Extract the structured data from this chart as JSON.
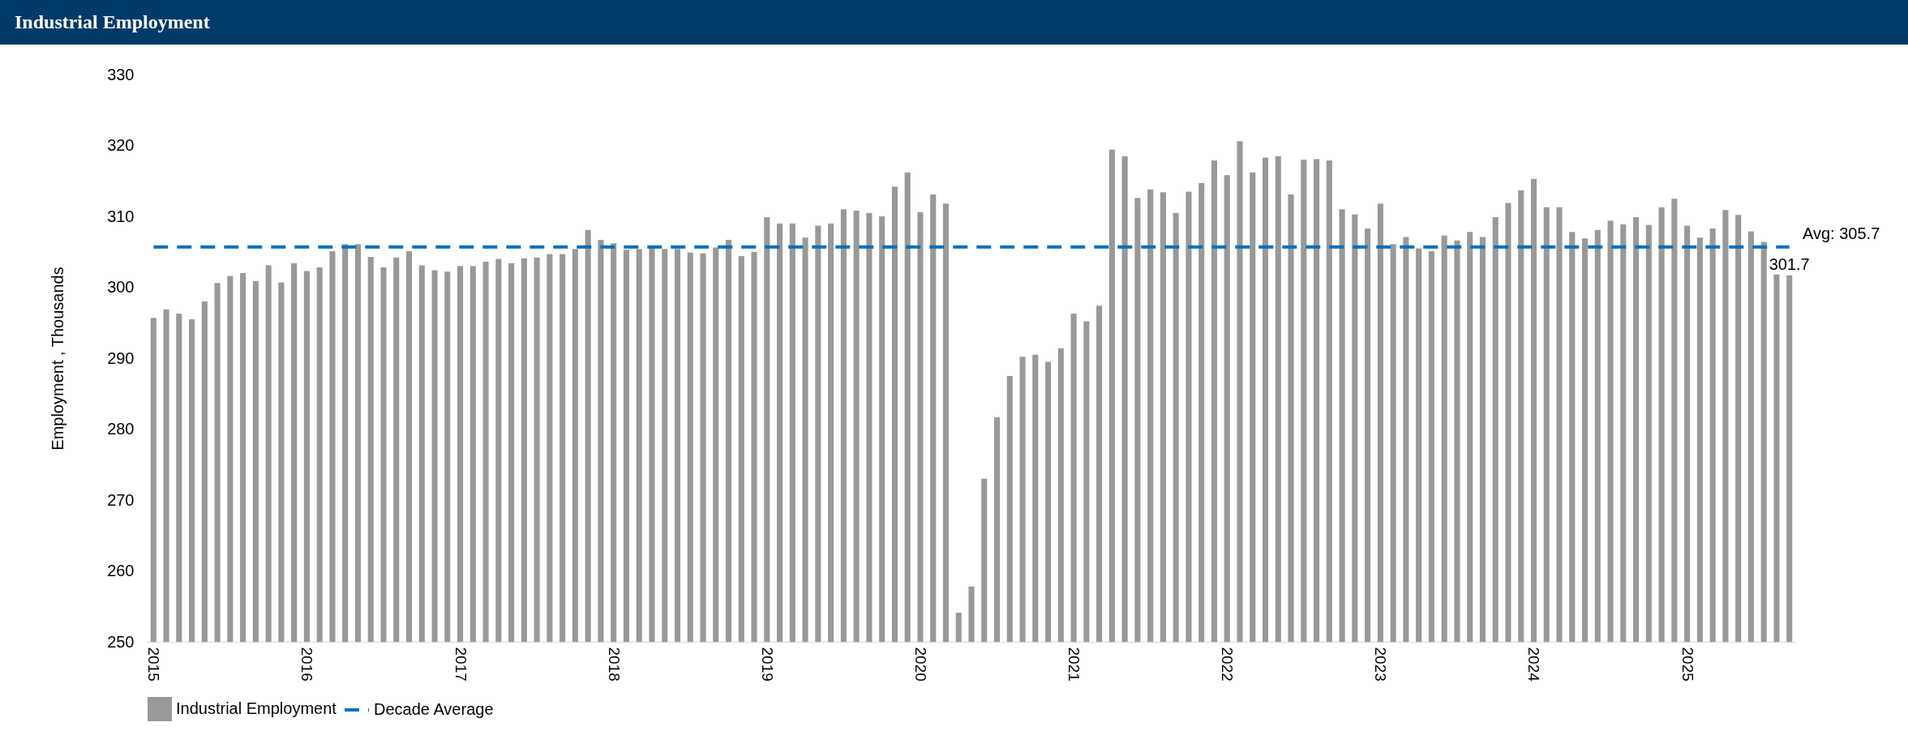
{
  "chart_data": {
    "type": "bar",
    "title": "Industrial Employment",
    "ylabel": "Employment , Thousands",
    "categories": [
      "2015",
      null,
      null,
      null,
      null,
      null,
      null,
      null,
      null,
      null,
      null,
      null,
      "2016",
      null,
      null,
      null,
      null,
      null,
      null,
      null,
      null,
      null,
      null,
      null,
      "2017",
      null,
      null,
      null,
      null,
      null,
      null,
      null,
      null,
      null,
      null,
      null,
      "2018",
      null,
      null,
      null,
      null,
      null,
      null,
      null,
      null,
      null,
      null,
      null,
      "2019",
      null,
      null,
      null,
      null,
      null,
      null,
      null,
      null,
      null,
      null,
      null,
      "2020",
      null,
      null,
      null,
      null,
      null,
      null,
      null,
      null,
      null,
      null,
      null,
      "2021",
      null,
      null,
      null,
      null,
      null,
      null,
      null,
      null,
      null,
      null,
      null,
      "2022",
      null,
      null,
      null,
      null,
      null,
      null,
      null,
      null,
      null,
      null,
      null,
      "2023",
      null,
      null,
      null,
      null,
      null,
      null,
      null,
      null,
      null,
      null,
      null,
      "2024",
      null,
      null,
      null,
      null,
      null,
      null,
      null,
      null,
      null,
      null,
      null,
      "2025",
      null,
      null,
      null,
      null,
      null,
      null,
      null,
      null
    ],
    "series": [
      {
        "name": "Industrial Employment",
        "color": "#999999",
        "values": [
          295.7,
          296.9,
          296.3,
          295.5,
          298.0,
          300.6,
          301.6,
          302.0,
          300.9,
          303.1,
          300.7,
          303.4,
          302.3,
          302.8,
          305.1,
          306.1,
          306.1,
          304.3,
          302.8,
          304.2,
          305.1,
          303.1,
          302.4,
          302.2,
          303.0,
          303.0,
          303.6,
          304.0,
          303.4,
          304.1,
          304.2,
          304.7,
          304.7,
          305.4,
          308.1,
          306.7,
          306.2,
          305.3,
          305.4,
          305.6,
          305.4,
          305.4,
          304.9,
          304.8,
          305.6,
          306.7,
          304.4,
          305.0,
          309.9,
          309.0,
          309.0,
          307.0,
          308.7,
          309.0,
          311.0,
          310.8,
          310.5,
          310.0,
          314.2,
          316.2,
          310.6,
          313.1,
          311.8,
          254.1,
          257.8,
          273.0,
          281.7,
          287.5,
          290.2,
          290.5,
          289.5,
          291.4,
          296.3,
          295.2,
          297.4,
          319.4,
          318.5,
          312.6,
          313.8,
          313.4,
          310.5,
          313.5,
          314.7,
          317.9,
          315.8,
          320.6,
          316.2,
          318.3,
          318.5,
          313.1,
          318.0,
          318.1,
          317.9,
          311.0,
          310.3,
          308.3,
          311.8,
          306.1,
          307.1,
          305.5,
          305.1,
          307.3,
          306.6,
          307.8,
          307.1,
          309.9,
          311.9,
          313.7,
          315.3,
          311.3,
          311.3,
          307.8,
          306.9,
          308.1,
          309.4,
          308.9,
          309.9,
          308.8,
          311.3,
          312.5,
          308.7,
          307.0,
          308.3,
          310.9,
          310.2,
          307.9,
          306.4,
          301.8,
          301.7
        ],
        "value_labels": [
          null,
          null,
          null,
          null,
          null,
          null,
          null,
          null,
          null,
          null,
          null,
          null,
          null,
          null,
          null,
          null,
          null,
          null,
          null,
          null,
          null,
          null,
          null,
          null,
          null,
          null,
          null,
          null,
          null,
          null,
          null,
          null,
          null,
          null,
          null,
          null,
          null,
          null,
          null,
          null,
          null,
          null,
          null,
          null,
          null,
          null,
          null,
          null,
          null,
          null,
          null,
          null,
          null,
          null,
          null,
          null,
          null,
          null,
          null,
          null,
          null,
          null,
          null,
          null,
          null,
          null,
          null,
          null,
          null,
          null,
          null,
          null,
          null,
          null,
          null,
          null,
          null,
          null,
          null,
          null,
          null,
          null,
          null,
          null,
          null,
          null,
          null,
          null,
          null,
          null,
          null,
          null,
          null,
          null,
          null,
          null,
          null,
          null,
          null,
          null,
          null,
          null,
          null,
          null,
          null,
          null,
          null,
          null,
          null,
          null,
          null,
          null,
          null,
          null,
          null,
          null,
          null,
          null,
          null,
          null,
          null,
          null,
          null,
          null,
          null,
          null,
          null,
          null,
          "301.7"
        ]
      },
      {
        "name": "Decade Average",
        "type": "line",
        "color": "#0070c0",
        "line_style": "dashed",
        "values": [
          305.7,
          305.7,
          305.7,
          305.7,
          305.7,
          305.7,
          305.7,
          305.7,
          305.7,
          305.7,
          305.7,
          305.7,
          305.7,
          305.7,
          305.7,
          305.7,
          305.7,
          305.7,
          305.7,
          305.7,
          305.7,
          305.7,
          305.7,
          305.7,
          305.7,
          305.7,
          305.7,
          305.7,
          305.7,
          305.7,
          305.7,
          305.7,
          305.7,
          305.7,
          305.7,
          305.7,
          305.7,
          305.7,
          305.7,
          305.7,
          305.7,
          305.7,
          305.7,
          305.7,
          305.7,
          305.7,
          305.7,
          305.7,
          305.7,
          305.7,
          305.7,
          305.7,
          305.7,
          305.7,
          305.7,
          305.7,
          305.7,
          305.7,
          305.7,
          305.7,
          305.7,
          305.7,
          305.7,
          305.7,
          305.7,
          305.7,
          305.7,
          305.7,
          305.7,
          305.7,
          305.7,
          305.7,
          305.7,
          305.7,
          305.7,
          305.7,
          305.7,
          305.7,
          305.7,
          305.7,
          305.7,
          305.7,
          305.7,
          305.7,
          305.7,
          305.7,
          305.7,
          305.7,
          305.7,
          305.7,
          305.7,
          305.7,
          305.7,
          305.7,
          305.7,
          305.7,
          305.7,
          305.7,
          305.7,
          305.7,
          305.7,
          305.7,
          305.7,
          305.7,
          305.7,
          305.7,
          305.7,
          305.7,
          305.7,
          305.7,
          305.7,
          305.7,
          305.7,
          305.7,
          305.7,
          305.7,
          305.7,
          305.7,
          305.7,
          305.7,
          305.7,
          305.7,
          305.7,
          305.7,
          305.7,
          305.7,
          305.7,
          305.7,
          305.7
        ]
      }
    ],
    "annotations": [
      "Avg: 305.7"
    ],
    "ylim": [
      250,
      330
    ],
    "yticks": [
      250,
      260,
      270,
      280,
      290,
      300,
      310,
      320,
      330
    ],
    "grid": false,
    "legend": "bottom"
  }
}
